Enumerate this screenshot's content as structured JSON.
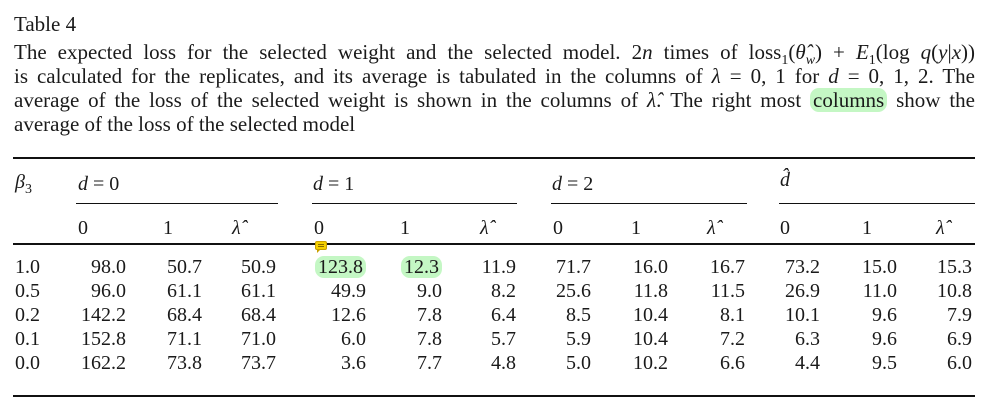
{
  "table_label": "Table 4",
  "caption": {
    "lines": [
      [
        "The expected loss for the selected weight and the selected model. 2",
        "n",
        " times of loss",
        "1",
        "(",
        "θ̂",
        "w",
        ") + ",
        "E",
        "1",
        "(log ",
        "q",
        "(",
        "y",
        "|",
        "x",
        "))"
      ],
      [
        "is calculated for the replicates, and its average is tabulated in the columns of ",
        "λ",
        " = 0, 1  for ",
        "d",
        " = 0, 1, 2. The"
      ],
      [
        "average of the loss of the selected weight is shown in the columns of ",
        "λ̂",
        ". The right most ",
        "columns",
        " show the"
      ],
      [
        "average of the loss of the selected model"
      ]
    ],
    "highlighted_word": "columns",
    "highlight_color": "#c4f7c4"
  },
  "table": {
    "row_header": "β3",
    "row_header_symbol": "β",
    "row_header_sub": "3",
    "groups": [
      {
        "label_var": "d",
        "label_rest": " = 0",
        "subcols": [
          "0",
          "1",
          "λ̂"
        ]
      },
      {
        "label_var": "d",
        "label_rest": " = 1",
        "subcols": [
          "0",
          "1",
          "λ̂"
        ]
      },
      {
        "label_var": "d",
        "label_rest": " = 2",
        "subcols": [
          "0",
          "1",
          "λ̂"
        ]
      },
      {
        "label_var": "d̂",
        "label_rest": "",
        "subcols": [
          "0",
          "1",
          "λ̂"
        ]
      }
    ],
    "rows": [
      {
        "beta3": "1.0",
        "values": [
          "98.0",
          "50.7",
          "50.9",
          "123.8",
          "12.3",
          "11.9",
          "71.7",
          "16.0",
          "16.7",
          "73.2",
          "15.0",
          "15.3"
        ]
      },
      {
        "beta3": "0.5",
        "values": [
          "96.0",
          "61.1",
          "61.1",
          "49.9",
          "9.0",
          "8.2",
          "25.6",
          "11.8",
          "11.5",
          "26.9",
          "11.0",
          "10.8"
        ]
      },
      {
        "beta3": "0.2",
        "values": [
          "142.2",
          "68.4",
          "68.4",
          "12.6",
          "7.8",
          "6.4",
          "8.5",
          "10.4",
          "8.1",
          "10.1",
          "9.6",
          "7.9"
        ]
      },
      {
        "beta3": "0.1",
        "values": [
          "152.8",
          "71.1",
          "71.0",
          "6.0",
          "7.8",
          "5.7",
          "5.9",
          "10.4",
          "7.2",
          "6.3",
          "9.6",
          "6.9"
        ]
      },
      {
        "beta3": "0.0",
        "values": [
          "162.2",
          "73.8",
          "73.7",
          "3.6",
          "7.7",
          "4.8",
          "5.0",
          "10.2",
          "6.6",
          "4.4",
          "9.5",
          "6.0"
        ]
      }
    ],
    "highlighted_cells": [
      [
        0,
        3
      ],
      [
        0,
        4
      ]
    ],
    "annotation_icon": "comment-note-icon"
  }
}
